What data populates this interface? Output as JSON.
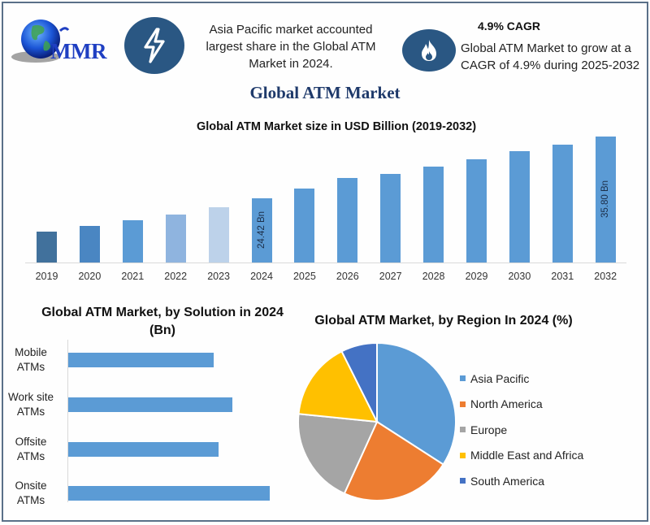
{
  "header": {
    "logo_text": "MMR",
    "icons": {
      "left": "lightning-bolt-icon",
      "right": "flame-icon"
    },
    "region_note": "Asia Pacific market accounted largest share in the Global ATM Market in 2024.",
    "cagr_title": "4.9% CAGR",
    "cagr_text": "Global ATM Market to grow at a CAGR of 4.9% during 2025-2032"
  },
  "main_title": "Global ATM Market",
  "colors": {
    "frame": "#5a7088",
    "icon_circle": "#2a5783",
    "main_title": "#1f3a6b",
    "logo": "#1f3fc2",
    "bar_default": "#5b9bd5"
  },
  "chart_data": [
    {
      "type": "bar",
      "title": "Global ATM Market size in USD Billion (2019-2032)",
      "xlabel": "",
      "ylabel": "",
      "categories": [
        "2019",
        "2020",
        "2021",
        "2022",
        "2023",
        "2024",
        "2025",
        "2026",
        "2027",
        "2028",
        "2029",
        "2030",
        "2031",
        "2032"
      ],
      "values": [
        18.3,
        19.3,
        20.4,
        21.4,
        22.8,
        24.42,
        26.2,
        28.2,
        28.9,
        30.3,
        31.6,
        33.1,
        34.3,
        35.8
      ],
      "bar_colors": [
        "#41719c",
        "#4a86c2",
        "#5b9bd5",
        "#8fb4df",
        "#bdd2ea",
        "#5b9bd5",
        "#5b9bd5",
        "#5b9bd5",
        "#5b9bd5",
        "#5b9bd5",
        "#5b9bd5",
        "#5b9bd5",
        "#5b9bd5",
        "#5b9bd5"
      ],
      "data_labels": [
        {
          "category": "2024",
          "text": "24.42 Bn"
        },
        {
          "category": "2032",
          "text": "35.80 Bn"
        }
      ],
      "grid": false,
      "y_axis_visible": false
    },
    {
      "type": "bar",
      "orientation": "horizontal",
      "title": "Global ATM Market, by Solution in 2024 (Bn)",
      "categories": [
        "Mobile ATMs",
        "Work site ATMs",
        "Offsite ATMs",
        "Onsite ATMs"
      ],
      "category_lines": [
        [
          "Mobile",
          "ATMs"
        ],
        [
          "Work site",
          "ATMs"
        ],
        [
          "Offsite",
          "ATMs"
        ],
        [
          "Onsite",
          "ATMs"
        ]
      ],
      "values": [
        5.37,
        6.06,
        5.55,
        7.44
      ],
      "color": "#5b9bd5",
      "grid": false,
      "x_axis_visible": false
    },
    {
      "type": "pie",
      "title": "Global ATM Market, by Region In 2024 (%)",
      "labels": [
        "Asia Pacific",
        "North America",
        "Europe",
        "Middle East and Africa",
        "South America"
      ],
      "values": [
        34.1,
        22.7,
        19.8,
        16.0,
        7.4
      ],
      "colors": [
        "#5b9bd5",
        "#ed7d31",
        "#a5a5a5",
        "#ffc000",
        "#4472c4"
      ],
      "legend_position": "right"
    }
  ]
}
